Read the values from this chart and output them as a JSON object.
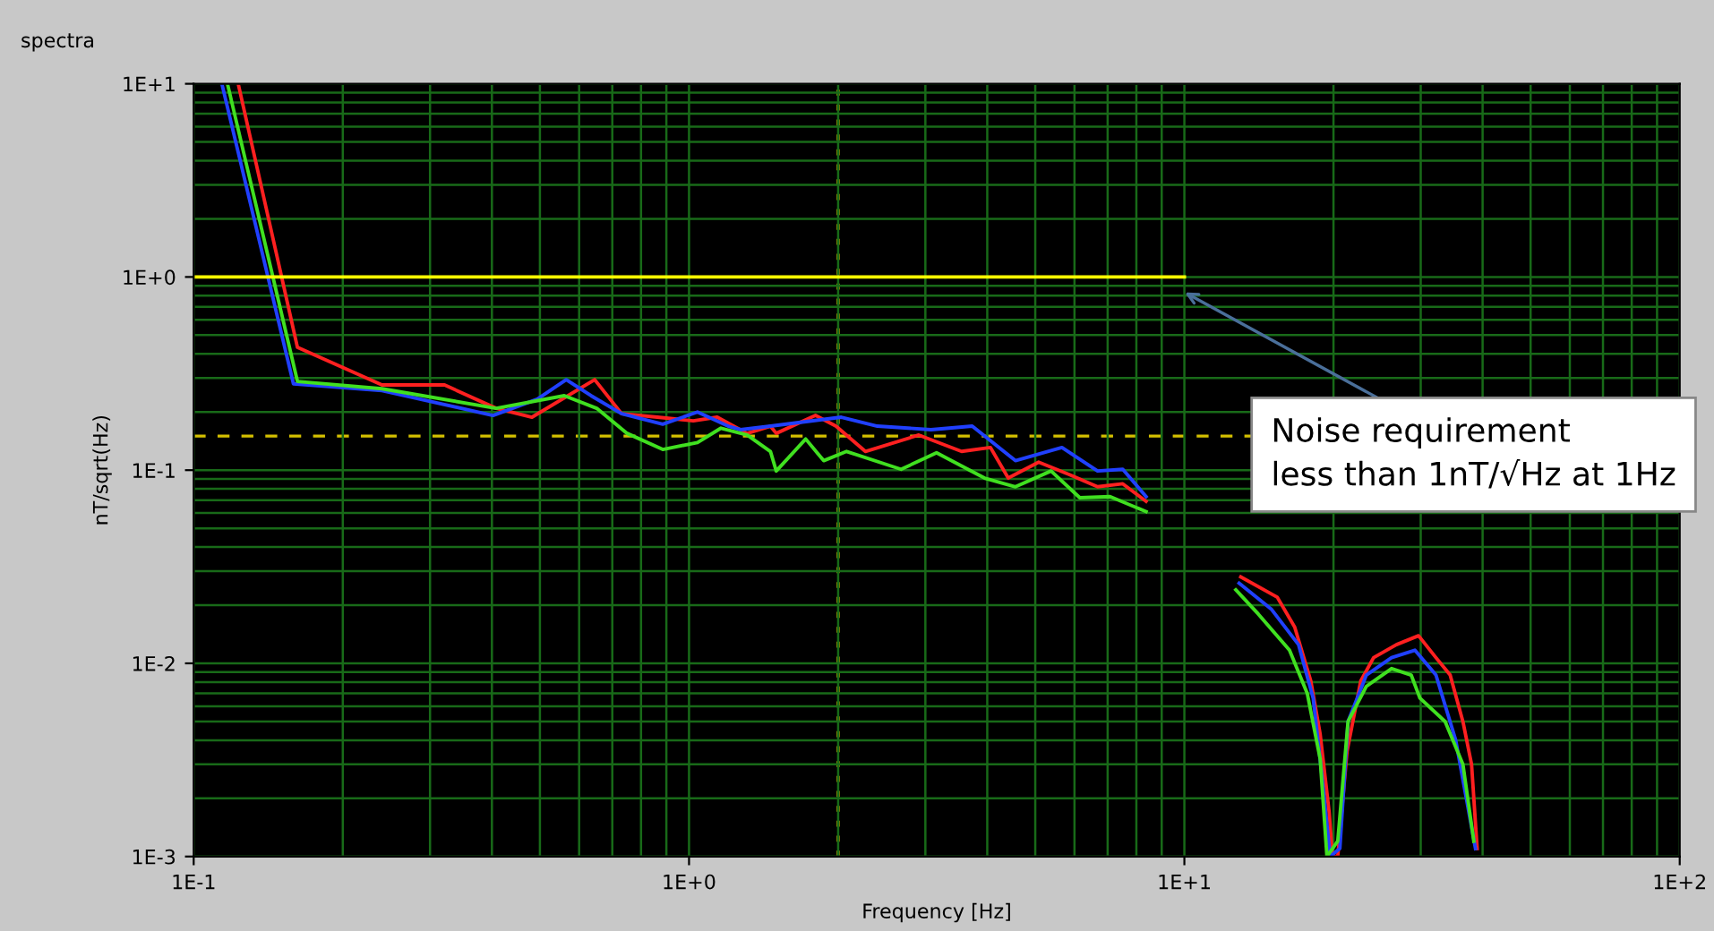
{
  "chart_data": {
    "type": "line",
    "title": "spectra",
    "xlabel": "Frequency [Hz]",
    "ylabel": "nT/sqrt(Hz)",
    "log": "xy",
    "grid": true,
    "line_style": "solid",
    "marker": "none",
    "xlim": [
      0.1,
      100
    ],
    "ylim": [
      0.001,
      10
    ],
    "xticks": [
      {
        "value": 0.1,
        "label": "1E-1"
      },
      {
        "value": 0.2,
        "label": null
      },
      {
        "value": 0.3,
        "label": null
      },
      {
        "value": 0.4,
        "label": null
      },
      {
        "value": 0.5,
        "label": null
      },
      {
        "value": 0.6,
        "label": null
      },
      {
        "value": 0.7,
        "label": null
      },
      {
        "value": 0.8,
        "label": null
      },
      {
        "value": 0.9,
        "label": null
      },
      {
        "value": 1,
        "label": "1E+0"
      },
      {
        "value": 2,
        "label": null
      },
      {
        "value": 3,
        "label": null
      },
      {
        "value": 4,
        "label": null
      },
      {
        "value": 5,
        "label": null
      },
      {
        "value": 6,
        "label": null
      },
      {
        "value": 7,
        "label": null
      },
      {
        "value": 8,
        "label": null
      },
      {
        "value": 9,
        "label": null
      },
      {
        "value": 10,
        "label": "1E+1"
      },
      {
        "value": 20,
        "label": null
      },
      {
        "value": 30,
        "label": null
      },
      {
        "value": 40,
        "label": null
      },
      {
        "value": 50,
        "label": null
      },
      {
        "value": 60,
        "label": null
      },
      {
        "value": 70,
        "label": null
      },
      {
        "value": 80,
        "label": null
      },
      {
        "value": 90,
        "label": null
      },
      {
        "value": 100,
        "label": "1E+2"
      }
    ],
    "yticks": [
      {
        "value": 0.001,
        "label": "1E-3"
      },
      {
        "value": 0.002,
        "label": null
      },
      {
        "value": 0.003,
        "label": null
      },
      {
        "value": 0.004,
        "label": null
      },
      {
        "value": 0.005,
        "label": null
      },
      {
        "value": 0.006,
        "label": null
      },
      {
        "value": 0.007,
        "label": null
      },
      {
        "value": 0.008,
        "label": null
      },
      {
        "value": 0.009,
        "label": null
      },
      {
        "value": 0.01,
        "label": "1E-2"
      },
      {
        "value": 0.02,
        "label": null
      },
      {
        "value": 0.03,
        "label": null
      },
      {
        "value": 0.04,
        "label": null
      },
      {
        "value": 0.05,
        "label": null
      },
      {
        "value": 0.06,
        "label": null
      },
      {
        "value": 0.07,
        "label": null
      },
      {
        "value": 0.08,
        "label": null
      },
      {
        "value": 0.09,
        "label": null
      },
      {
        "value": 0.1,
        "label": "1E-1"
      },
      {
        "value": 0.2,
        "label": null
      },
      {
        "value": 0.3,
        "label": null
      },
      {
        "value": 0.4,
        "label": null
      },
      {
        "value": 0.5,
        "label": null
      },
      {
        "value": 0.6,
        "label": null
      },
      {
        "value": 0.7,
        "label": null
      },
      {
        "value": 0.8,
        "label": null
      },
      {
        "value": 0.9,
        "label": null
      },
      {
        "value": 1,
        "label": "1E+0"
      },
      {
        "value": 2,
        "label": null
      },
      {
        "value": 3,
        "label": null
      },
      {
        "value": 4,
        "label": null
      },
      {
        "value": 5,
        "label": null
      },
      {
        "value": 6,
        "label": null
      },
      {
        "value": 7,
        "label": null
      },
      {
        "value": 8,
        "label": null
      },
      {
        "value": 9,
        "label": null
      },
      {
        "value": 10,
        "label": "1E+1"
      }
    ],
    "series": [
      {
        "color": "#ff2020",
        "x": [
          0.123,
          0.162,
          0.24,
          0.321,
          0.408,
          0.482,
          0.645,
          0.731,
          0.863,
          1.02,
          1.14,
          1.31,
          1.46,
          1.5,
          1.8,
          1.98,
          2.27,
          2.91,
          3.55,
          4.06,
          4.41,
          5.08,
          5.85,
          6.68,
          7.51,
          8.37,
          10.3,
          13.0,
          15.4,
          16.7,
          18.0,
          18.8,
          19.6,
          19.9,
          20.4,
          21.3,
          22.7,
          24.1,
          26.8,
          29.7,
          32.2,
          34.4,
          36.5,
          38.0,
          39.0
        ],
        "values": [
          10,
          0.432,
          0.276,
          0.276,
          0.209,
          0.188,
          0.294,
          0.196,
          0.188,
          0.18,
          0.188,
          0.155,
          0.169,
          0.155,
          0.192,
          0.169,
          0.125,
          0.152,
          0.125,
          0.131,
          0.091,
          0.11,
          0.095,
          0.082,
          0.085,
          0.069,
          null,
          0.028,
          0.022,
          0.0154,
          0.0081,
          0.0043,
          0.0017,
          0.001,
          0.001,
          0.0035,
          0.0081,
          0.0107,
          0.0125,
          0.0139,
          0.0107,
          0.0087,
          0.005,
          0.003,
          0.0011
        ]
      },
      {
        "color": "#2040ff",
        "x": [
          0.114,
          0.159,
          0.24,
          0.402,
          0.494,
          0.565,
          0.634,
          0.731,
          0.885,
          1.04,
          1.2,
          1.27,
          1.46,
          2.03,
          2.4,
          3.08,
          3.73,
          4.56,
          5.66,
          6.68,
          7.51,
          8.37,
          10.3,
          12.9,
          15.0,
          17.0,
          18.2,
          18.9,
          19.7,
          20.6,
          21.4,
          23.3,
          26.2,
          29.2,
          32.2,
          35.3,
          38.7
        ],
        "values": [
          10,
          0.28,
          0.258,
          0.192,
          0.233,
          0.294,
          0.243,
          0.196,
          0.173,
          0.2,
          0.169,
          0.162,
          0.169,
          0.188,
          0.169,
          0.162,
          0.169,
          0.112,
          0.131,
          0.099,
          0.101,
          0.073,
          null,
          0.026,
          0.019,
          0.0125,
          0.0066,
          0.0028,
          0.001,
          0.0011,
          0.005,
          0.0087,
          0.0107,
          0.0117,
          0.0087,
          0.004,
          0.0011
        ]
      },
      {
        "color": "#40e020",
        "x": [
          0.117,
          0.162,
          0.24,
          0.408,
          0.56,
          0.651,
          0.75,
          0.885,
          1.04,
          1.16,
          1.31,
          1.46,
          1.5,
          1.72,
          1.87,
          2.08,
          2.68,
          3.16,
          3.95,
          4.56,
          5.38,
          6.15,
          7.08,
          8.37,
          10.3,
          12.7,
          14.1,
          16.3,
          17.7,
          18.8,
          19.4,
          20.4,
          21.4,
          23.3,
          26.2,
          28.7,
          29.9,
          33.6,
          36.5,
          38.4
        ],
        "values": [
          10,
          0.288,
          0.264,
          0.209,
          0.243,
          0.209,
          0.155,
          0.128,
          0.139,
          0.165,
          0.152,
          0.125,
          0.099,
          0.145,
          0.112,
          0.125,
          0.101,
          0.123,
          0.091,
          0.082,
          0.099,
          0.072,
          0.073,
          0.061,
          null,
          0.024,
          0.018,
          0.0117,
          0.007,
          0.0032,
          0.001,
          0.0012,
          0.005,
          0.0076,
          0.0094,
          0.0087,
          0.0066,
          0.005,
          0.003,
          0.0012
        ]
      },
      {
        "color": "#ffff00",
        "x": [
          0.1,
          10
        ],
        "values": [
          1,
          1
        ]
      }
    ],
    "ref_lines": [
      {
        "axis": "y",
        "value": 0.15,
        "color": "#d4c000",
        "line_style": "dashed"
      },
      {
        "axis": "x",
        "value": 2,
        "color": "#d4c000",
        "line_style": "dotted"
      }
    ],
    "annotations": [
      "Noise requirement\nless than 1nT/√Hz at 1Hz"
    ]
  }
}
